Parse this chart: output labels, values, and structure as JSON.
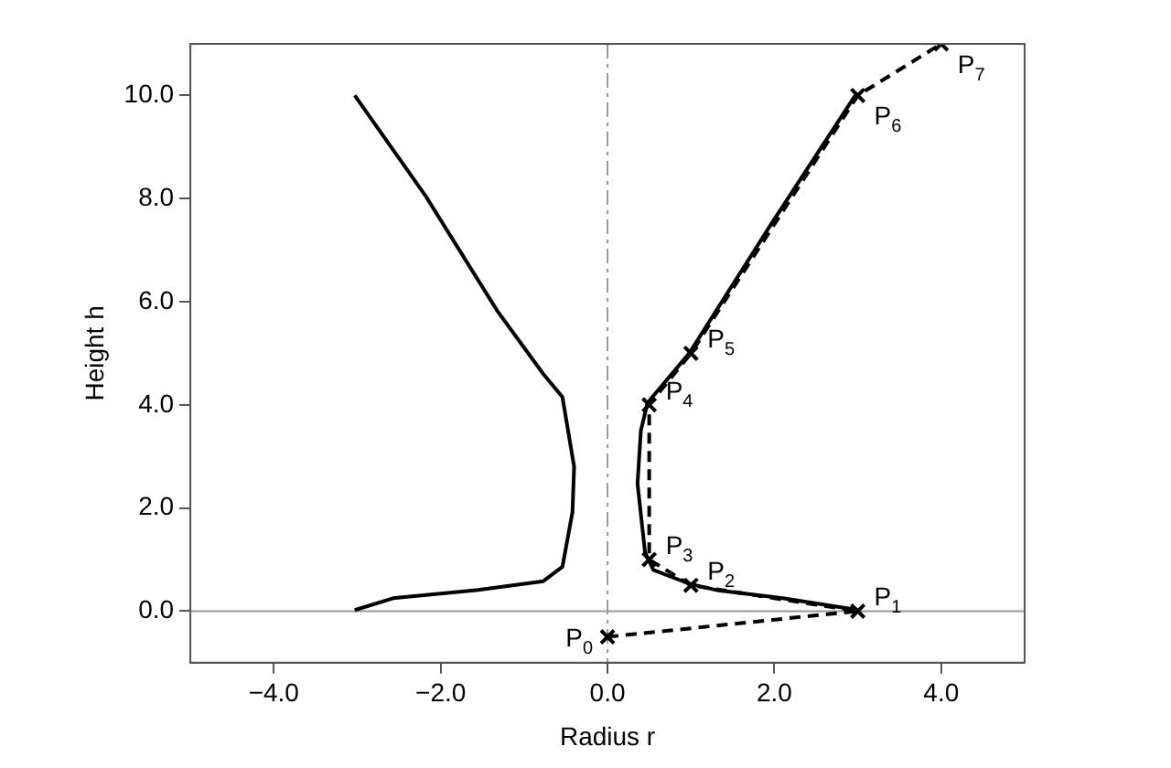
{
  "chart_data": {
    "type": "line",
    "xlabel": "Radius r",
    "ylabel": "Height h",
    "xlim": [
      -5,
      5
    ],
    "ylim": [
      -1,
      11
    ],
    "xticks": [
      {
        "value": -4,
        "label": "−4.0"
      },
      {
        "value": -2,
        "label": "−2.0"
      },
      {
        "value": 0,
        "label": "0.0"
      },
      {
        "value": 2,
        "label": "2.0"
      },
      {
        "value": 4,
        "label": "4.0"
      }
    ],
    "yticks": [
      {
        "value": 0,
        "label": "0.0"
      },
      {
        "value": 2,
        "label": "2.0"
      },
      {
        "value": 4,
        "label": "4.0"
      },
      {
        "value": 6,
        "label": "6.0"
      },
      {
        "value": 8,
        "label": "8.0"
      },
      {
        "value": 10,
        "label": "10.0"
      }
    ],
    "grid": false,
    "legend": false,
    "series": [
      {
        "color": "#000000",
        "marker": "none",
        "line_style": "solid",
        "x": [
          3.01,
          2.1,
          1.33,
          0.98,
          0.55,
          0.45,
          0.36,
          0.4,
          0.48,
          0.98,
          1.96,
          2.97
        ],
        "values": [
          0.02,
          0.25,
          0.4,
          0.53,
          0.8,
          1.14,
          2.47,
          3.5,
          4.04,
          5.0,
          7.5,
          10.0
        ]
      },
      {
        "color": "#000000",
        "marker": "none",
        "line_style": "solid",
        "x": [
          -3.03,
          -2.57,
          -1.55,
          -0.77,
          -0.54,
          -0.42,
          -0.4,
          -0.54,
          -0.77,
          -1.32,
          -2.18,
          -3.03
        ],
        "values": [
          0.02,
          0.25,
          0.41,
          0.58,
          0.86,
          1.92,
          2.8,
          4.15,
          4.6,
          5.82,
          8.05,
          10.0
        ]
      },
      {
        "color": "#000000",
        "marker": "cross",
        "line_style": "dashed",
        "x": [
          0,
          3,
          1,
          0.5,
          0.5,
          1,
          3,
          4
        ],
        "values": [
          -0.5,
          0,
          0.5,
          1,
          4,
          5,
          10,
          11
        ]
      }
    ],
    "ref_lines": [
      {
        "axis": "x",
        "value": 0,
        "color": "#999999",
        "line_style": "dashed"
      },
      {
        "axis": "y",
        "value": 0,
        "color": "#999999",
        "line_style": "solid"
      }
    ],
    "annotations": [
      {
        "text": "P$_{0}$",
        "x": 0,
        "y": -0.5
      },
      {
        "text": "P$_{1}$",
        "x": 3,
        "y": 0
      },
      {
        "text": "P$_{2}$",
        "x": 1,
        "y": 0.5
      },
      {
        "text": "P$_{3}$",
        "x": 0.5,
        "y": 1
      },
      {
        "text": "P$_{4}$",
        "x": 0.5,
        "y": 4
      },
      {
        "text": "P$_{5}$",
        "x": 1,
        "y": 5
      },
      {
        "text": "P$_{6}$",
        "x": 3,
        "y": 10
      },
      {
        "text": "P$_{7}$",
        "x": 4,
        "y": 11
      }
    ]
  }
}
